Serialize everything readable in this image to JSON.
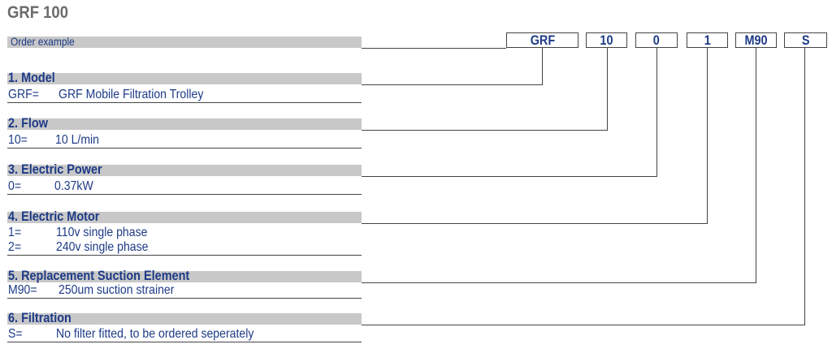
{
  "title": "GRF 100",
  "order_example": {
    "label": "Order example",
    "codes": [
      "GRF",
      "10",
      "0",
      "1",
      "M90",
      "S"
    ]
  },
  "sections": [
    {
      "heading": "1. Model",
      "options": [
        {
          "code": "GRF=",
          "desc": "GRF Mobile Filtration Trolley"
        }
      ]
    },
    {
      "heading": "2. Flow",
      "options": [
        {
          "code": "10=",
          "desc": "10 L/min"
        }
      ]
    },
    {
      "heading": "3. Electric Power",
      "options": [
        {
          "code": "0=",
          "desc": "0.37kW"
        }
      ]
    },
    {
      "heading": "4. Electric Motor",
      "options": [
        {
          "code": "1=",
          "desc": "110v single phase"
        },
        {
          "code": "2=",
          "desc": "240v single phase"
        }
      ]
    },
    {
      "heading": "5. Replacement Suction Element",
      "options": [
        {
          "code": "M90=",
          "desc": "250um suction strainer"
        }
      ]
    },
    {
      "heading": "6. Filtration",
      "options": [
        {
          "code": "S=",
          "desc": "No filter fitted, to be ordered seperately"
        }
      ]
    }
  ],
  "colors": {
    "text": "#1d3a86",
    "bar": "#c8c8c8",
    "title": "#6b6b6b"
  }
}
